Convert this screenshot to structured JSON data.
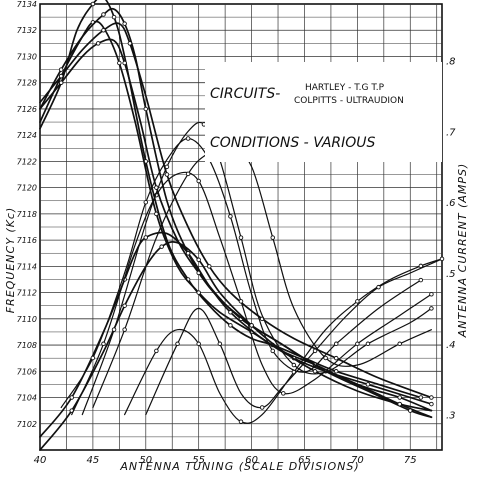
{
  "chart_data": {
    "type": "line",
    "xlabel": "ANTENNA TUNING (SCALE DIVISIONS)",
    "ylabel": "FREQUENCY (Kc)",
    "y2label": "ANTENNA CURRENT (AMPS)",
    "xlim": [
      40,
      78
    ],
    "ylim": [
      7100,
      7134
    ],
    "y2lim": [
      0.25,
      0.88
    ],
    "x_ticks": [
      40,
      45,
      50,
      55,
      60,
      65,
      70,
      75
    ],
    "y_ticks": [
      7102,
      7104,
      7106,
      7108,
      7110,
      7112,
      7114,
      7116,
      7118,
      7120,
      7122,
      7124,
      7126,
      7128,
      7130,
      7132,
      7134
    ],
    "y2_ticks": [
      {
        "label": ".3",
        "value": 0.3
      },
      {
        "label": ".4",
        "value": 0.4
      },
      {
        "label": ".5",
        "value": 0.5
      },
      {
        "label": ".6",
        "value": 0.6
      },
      {
        "label": ".7",
        "value": 0.7
      },
      {
        "label": ".8",
        "value": 0.8
      }
    ],
    "grid": true,
    "annotations": [
      {
        "text": "CIRCUITS-",
        "style": "big"
      },
      {
        "text": "HARTLEY - T.G T.P",
        "style": "small"
      },
      {
        "text": "COLPITTS - ULTRAUDION",
        "style": "small"
      },
      {
        "text": "CONDITIONS - VARIOUS",
        "style": "big"
      }
    ],
    "frequency_series": [
      {
        "x": [
          40,
          42,
          43.5,
          45,
          46,
          47,
          48,
          50,
          52,
          54,
          56,
          58,
          60,
          62,
          65,
          68,
          72,
          76
        ],
        "y": [
          7124.5,
          7128,
          7132,
          7134,
          7134.5,
          7133,
          7130,
          7122,
          7116,
          7113,
          7111,
          7109.5,
          7108.5,
          7108,
          7107,
          7106,
          7105,
          7104
        ]
      },
      {
        "x": [
          40,
          42,
          44,
          45,
          46,
          47.5,
          49,
          51,
          53,
          55,
          57,
          60,
          63,
          66,
          70,
          74,
          77
        ],
        "y": [
          7125,
          7128.5,
          7131.5,
          7132.6,
          7132.2,
          7129.5,
          7125,
          7118,
          7114,
          7112,
          7110.5,
          7109,
          7107.5,
          7106.5,
          7105,
          7104,
          7103
        ]
      },
      {
        "x": [
          40,
          42,
          44,
          46,
          47,
          48,
          49,
          50,
          52,
          54,
          56,
          59,
          62,
          66,
          70,
          74,
          77
        ],
        "y": [
          7126,
          7129,
          7131.5,
          7133.2,
          7133.6,
          7132.5,
          7130,
          7126,
          7119,
          7115,
          7112.5,
          7110,
          7108.5,
          7106.5,
          7105,
          7103.5,
          7102.5
        ]
      },
      {
        "x": [
          40,
          42,
          44,
          45.5,
          47,
          48,
          49.5,
          51,
          53,
          55,
          57,
          60,
          63,
          67,
          71,
          75,
          77
        ],
        "y": [
          7126,
          7128,
          7130,
          7131,
          7131.2,
          7129.5,
          7125,
          7120,
          7116,
          7113.5,
          7111.5,
          7109.5,
          7108,
          7106,
          7104.5,
          7103,
          7102.5
        ]
      },
      {
        "x": [
          40,
          42,
          44,
          46,
          47.5,
          48.5,
          50,
          52,
          54,
          56,
          58,
          61,
          64,
          68,
          72,
          77
        ],
        "y": [
          7126.5,
          7128.5,
          7130.5,
          7132,
          7132.5,
          7131,
          7127,
          7121,
          7117,
          7114,
          7112,
          7110,
          7108.5,
          7107,
          7105.5,
          7104
        ]
      },
      {
        "x": [
          40,
          43,
          46,
          48,
          49,
          50,
          52,
          54,
          56,
          58,
          61,
          64,
          67,
          71,
          75,
          77
        ],
        "y": [
          7101,
          7104,
          7109,
          7113,
          7115,
          7116.2,
          7116.5,
          7115,
          7112.5,
          7110.5,
          7108.5,
          7107,
          7106,
          7105,
          7104,
          7103.5
        ]
      },
      {
        "x": [
          40,
          43,
          46,
          48,
          50,
          51.5,
          53,
          55,
          57,
          60,
          63,
          66,
          70,
          74,
          77
        ],
        "y": [
          7100,
          7103,
          7107.5,
          7111,
          7114,
          7115.5,
          7115.8,
          7114.5,
          7112,
          7109.5,
          7107.5,
          7106,
          7104.5,
          7103.5,
          7103
        ]
      }
    ],
    "current_series": [
      {
        "x": [
          42,
          45,
          48,
          50,
          52,
          54,
          56,
          58,
          60,
          62,
          65,
          68,
          72,
          76
        ],
        "y": [
          0.31,
          0.38,
          0.5,
          0.6,
          0.66,
          0.69,
          0.66,
          0.58,
          0.47,
          0.39,
          0.36,
          0.4,
          0.45,
          0.49
        ]
      },
      {
        "x": [
          43,
          46,
          49,
          51,
          53,
          55,
          57,
          59,
          61,
          63,
          66,
          70,
          74,
          77
        ],
        "y": [
          0.3,
          0.4,
          0.54,
          0.61,
          0.64,
          0.63,
          0.55,
          0.46,
          0.37,
          0.33,
          0.35,
          0.4,
          0.44,
          0.47
        ]
      },
      {
        "x": [
          44,
          47,
          50,
          52,
          54,
          55.5,
          57,
          59,
          61,
          64,
          67,
          71,
          75,
          77
        ],
        "y": [
          0.3,
          0.42,
          0.57,
          0.65,
          0.7,
          0.71,
          0.66,
          0.55,
          0.44,
          0.37,
          0.36,
          0.4,
          0.43,
          0.45
        ]
      },
      {
        "x": [
          45,
          48,
          51,
          54,
          56,
          58,
          60,
          62,
          64,
          67,
          70,
          74,
          77
        ],
        "y": [
          0.31,
          0.42,
          0.55,
          0.64,
          0.67,
          0.68,
          0.65,
          0.55,
          0.45,
          0.38,
          0.37,
          0.4,
          0.42
        ]
      },
      {
        "x": [
          48,
          51,
          53,
          55,
          57,
          59,
          61,
          64,
          67,
          70,
          73,
          76,
          78
        ],
        "y": [
          0.3,
          0.39,
          0.42,
          0.4,
          0.33,
          0.29,
          0.3,
          0.36,
          0.42,
          0.46,
          0.49,
          0.51,
          0.52
        ]
      },
      {
        "x": [
          50,
          53,
          55,
          57,
          59,
          61,
          63,
          66,
          69,
          72,
          75,
          78
        ],
        "y": [
          0.3,
          0.4,
          0.45,
          0.4,
          0.33,
          0.31,
          0.34,
          0.39,
          0.44,
          0.48,
          0.5,
          0.52
        ]
      }
    ]
  }
}
